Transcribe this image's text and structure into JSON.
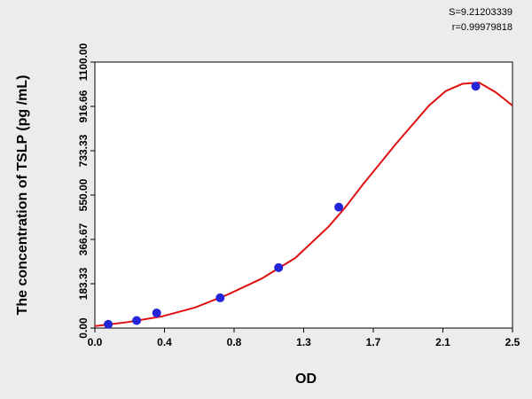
{
  "chart_data": {
    "type": "scatter",
    "stats": [
      "S=9.21203339",
      "r=0.99979818"
    ],
    "x_label": "OD",
    "y_label": "The concentration of  TSLP (pg /mL)",
    "xlim": [
      0,
      2.5
    ],
    "ylim": [
      0,
      1100
    ],
    "xticks": [
      {
        "value": 0,
        "label": "0.0"
      },
      {
        "value": 0.41667,
        "label": "0.4"
      },
      {
        "value": 0.83333,
        "label": "0.8"
      },
      {
        "value": 1.25,
        "label": "1.3"
      },
      {
        "value": 1.66667,
        "label": "1.7"
      },
      {
        "value": 2.08333,
        "label": "2.1"
      },
      {
        "value": 2.5,
        "label": "2.5"
      }
    ],
    "yticks": [
      {
        "value": 0,
        "label": "0.00"
      },
      {
        "value": 183.333,
        "label": "183.33"
      },
      {
        "value": 366.667,
        "label": "366.67"
      },
      {
        "value": 550,
        "label": "550.00"
      },
      {
        "value": 733.333,
        "label": "733.33"
      },
      {
        "value": 916.66,
        "label": "916.66"
      },
      {
        "value": 1100,
        "label": "1100.00"
      }
    ],
    "points": {
      "color": "#2424d8",
      "x": [
        0.08,
        0.25,
        0.37,
        0.75,
        1.1,
        1.46,
        2.28
      ],
      "y": [
        15.6,
        31.25,
        62.5,
        125,
        250,
        500,
        1000
      ]
    },
    "fit_curve": {
      "color": "#e01010",
      "x": [
        0,
        0.2,
        0.4,
        0.6,
        0.8,
        1.0,
        1.2,
        1.4,
        1.5,
        1.6,
        1.8,
        2.0,
        2.1,
        2.2,
        2.3,
        2.4,
        2.5
      ],
      "y": [
        8,
        25,
        48,
        85,
        140,
        205,
        290,
        420,
        500,
        590,
        760,
        920,
        980,
        1010,
        1015,
        975,
        920
      ]
    }
  }
}
